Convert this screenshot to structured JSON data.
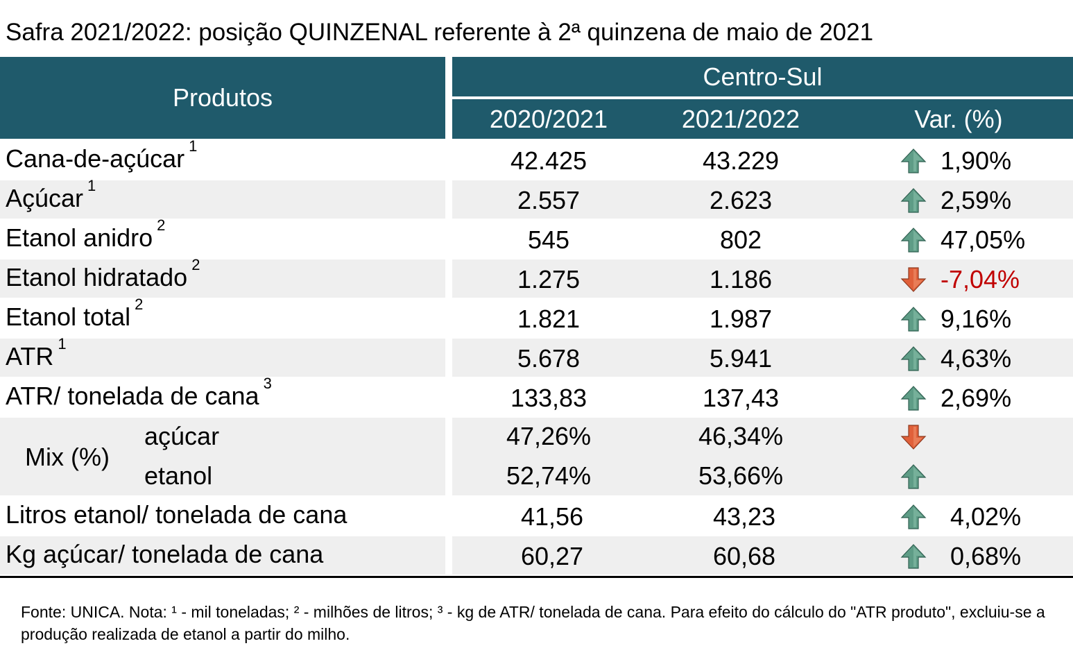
{
  "title": "Safra 2021/2022: posição QUINZENAL referente à 2ª quinzena de maio de 2021",
  "header": {
    "produtos": "Produtos",
    "region": "Centro-Sul",
    "col_prev": "2020/2021",
    "col_curr": "2021/2022",
    "col_var": "Var. (%)"
  },
  "colors": {
    "header_bg": "#1f5a6b",
    "row_shade": "#efefef",
    "up_arrow": "#5e9c86",
    "down_arrow": "#e0603a",
    "negative_text": "#c00000"
  },
  "rows": [
    {
      "label": "Cana-de-açúcar",
      "sup": "1",
      "prev": "42.425",
      "curr": "43.229",
      "var": "1,90%",
      "trend": "up-arrow-icon"
    },
    {
      "label": "Açúcar",
      "sup": "1",
      "prev": "2.557",
      "curr": "2.623",
      "var": "2,59%",
      "trend": "up-arrow-icon"
    },
    {
      "label": "Etanol anidro",
      "sup": "2",
      "prev": "545",
      "curr": "802",
      "var": "47,05%",
      "trend": "up-arrow-icon"
    },
    {
      "label": "Etanol hidratado",
      "sup": "2",
      "prev": "1.275",
      "curr": "1.186",
      "var": "-7,04%",
      "trend": "down-arrow-icon"
    },
    {
      "label": "Etanol total",
      "sup": "2",
      "prev": "1.821",
      "curr": "1.987",
      "var": "9,16%",
      "trend": "up-arrow-icon"
    },
    {
      "label": "ATR",
      "sup": "1",
      "prev": "5.678",
      "curr": "5.941",
      "var": "4,63%",
      "trend": "up-arrow-icon"
    },
    {
      "label": "ATR/ tonelada de cana",
      "sup": "3",
      "prev": "133,83",
      "curr": "137,43",
      "var": "2,69%",
      "trend": "up-arrow-icon"
    }
  ],
  "mix": {
    "label": "Mix (%)",
    "acucar": {
      "label": "açúcar",
      "prev": "47,26%",
      "curr": "46,34%",
      "trend": "down-arrow-icon"
    },
    "etanol": {
      "label": "etanol",
      "prev": "52,74%",
      "curr": "53,66%",
      "trend": "up-arrow-icon"
    }
  },
  "rows_after": [
    {
      "label": "Litros etanol/ tonelada de cana",
      "prev": "41,56",
      "curr": "43,23",
      "var": "4,02%",
      "trend": "up-arrow-icon"
    },
    {
      "label": "Kg açúcar/ tonelada de cana",
      "prev": "60,27",
      "curr": "60,68",
      "var": "0,68%",
      "trend": "up-arrow-icon"
    }
  ],
  "footnote": "Fonte: UNICA. Nota: ¹ - mil toneladas; ² - milhões de litros; ³ - kg de ATR/ tonelada de cana. Para efeito do cálculo do \"ATR produto\", excluiu-se a produção realizada de etanol a partir do milho."
}
